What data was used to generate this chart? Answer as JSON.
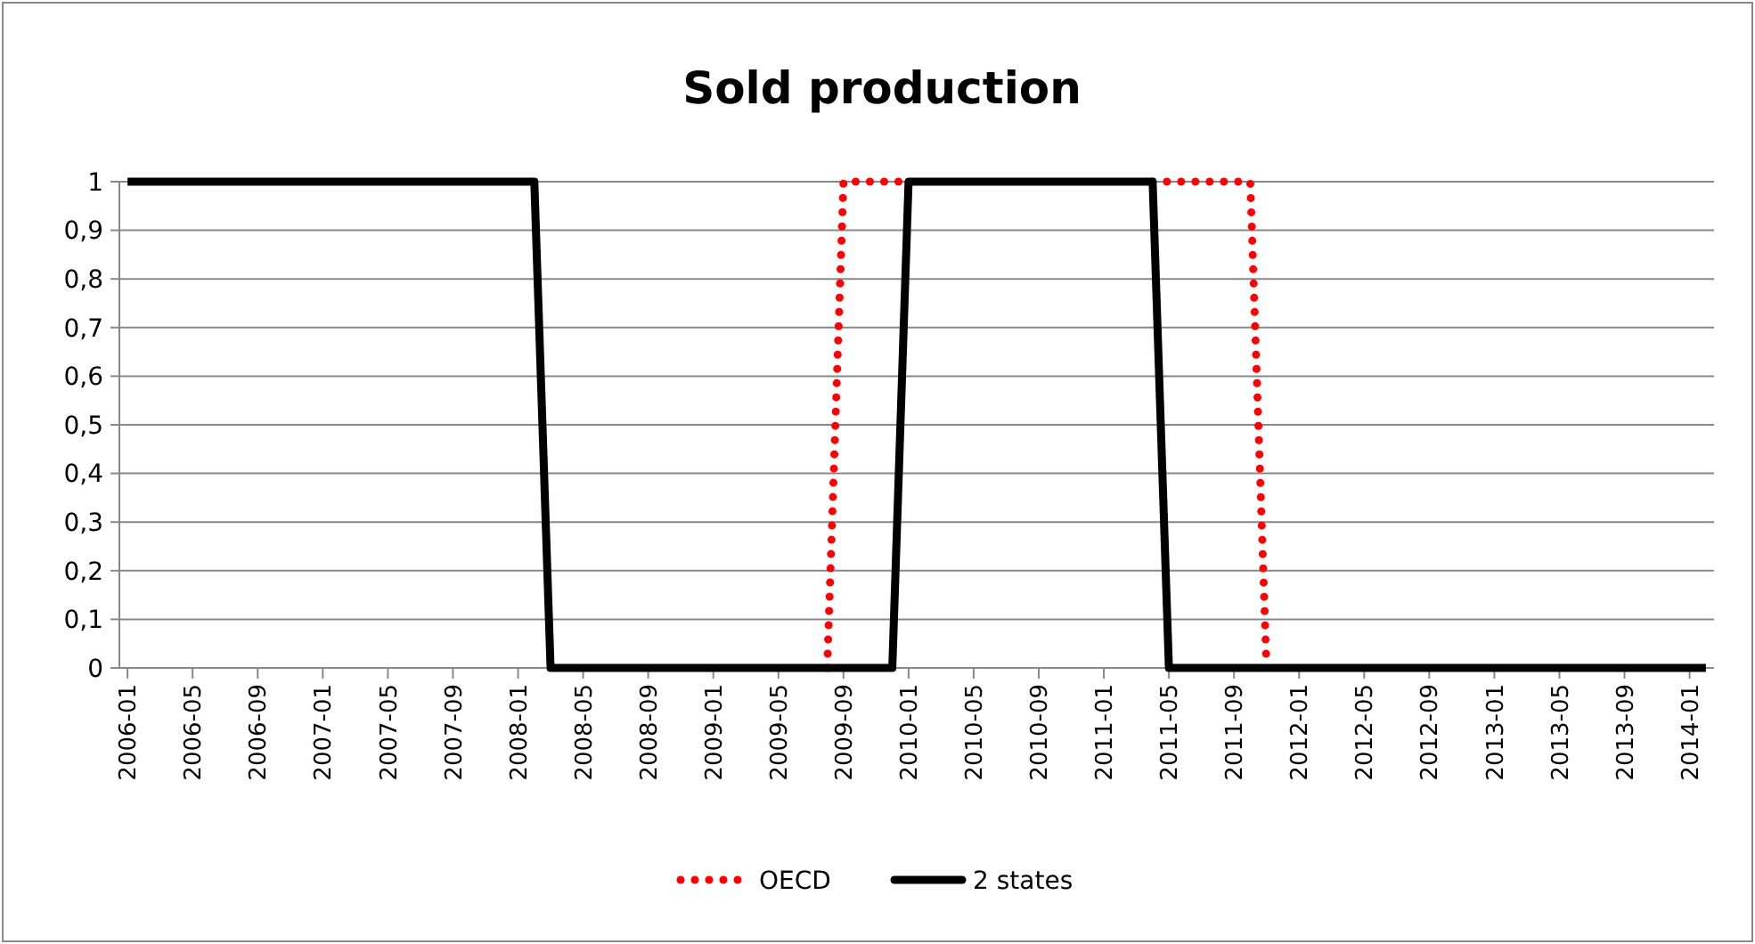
{
  "chart_data": {
    "type": "line",
    "title": "Sold production",
    "categories": [
      "2006-01",
      null,
      null,
      null,
      "2006-05",
      null,
      null,
      null,
      "2006-09",
      null,
      null,
      null,
      "2007-01",
      null,
      null,
      null,
      "2007-05",
      null,
      null,
      null,
      "2007-09",
      null,
      null,
      null,
      "2008-01",
      null,
      null,
      null,
      "2008-05",
      null,
      null,
      null,
      "2008-09",
      null,
      null,
      null,
      "2009-01",
      null,
      null,
      null,
      "2009-05",
      null,
      null,
      null,
      "2009-09",
      null,
      null,
      null,
      "2010-01",
      null,
      null,
      null,
      "2010-05",
      null,
      null,
      null,
      "2010-09",
      null,
      null,
      null,
      "2011-01",
      null,
      null,
      null,
      "2011-05",
      null,
      null,
      null,
      "2011-09",
      null,
      null,
      null,
      "2012-01",
      null,
      null,
      null,
      "2012-05",
      null,
      null,
      null,
      "2012-09",
      null,
      null,
      null,
      "2013-01",
      null,
      null,
      null,
      "2013-05",
      null,
      null,
      null,
      "2013-09",
      null,
      null,
      null,
      "2014-01",
      null
    ],
    "series": [
      {
        "name": "OECD",
        "color": "#ff0000",
        "line_style": "dotted",
        "values": [
          null,
          null,
          null,
          null,
          null,
          null,
          null,
          null,
          null,
          null,
          null,
          null,
          null,
          null,
          null,
          null,
          null,
          null,
          null,
          null,
          null,
          null,
          null,
          null,
          null,
          null,
          null,
          null,
          null,
          null,
          null,
          null,
          null,
          null,
          null,
          null,
          null,
          null,
          null,
          null,
          null,
          null,
          null,
          0,
          1,
          1,
          1,
          1,
          1,
          null,
          null,
          null,
          null,
          null,
          null,
          null,
          null,
          null,
          null,
          null,
          null,
          null,
          null,
          1,
          1,
          1,
          1,
          1,
          1,
          1,
          0,
          null,
          null,
          null,
          null,
          null,
          null,
          null,
          null,
          null,
          null,
          null,
          null,
          null,
          null,
          null,
          null,
          null,
          null,
          null,
          null,
          null,
          null,
          null,
          null,
          null,
          null,
          null
        ]
      },
      {
        "name": "2 states",
        "color": "#000000",
        "line_style": "solid",
        "values": [
          1,
          1,
          1,
          1,
          1,
          1,
          1,
          1,
          1,
          1,
          1,
          1,
          1,
          1,
          1,
          1,
          1,
          1,
          1,
          1,
          1,
          1,
          1,
          1,
          1,
          1,
          0,
          0,
          0,
          0,
          0,
          0,
          0,
          0,
          0,
          0,
          0,
          0,
          0,
          0,
          0,
          0,
          0,
          0,
          0,
          0,
          0,
          0,
          1,
          1,
          1,
          1,
          1,
          1,
          1,
          1,
          1,
          1,
          1,
          1,
          1,
          1,
          1,
          1,
          0,
          0,
          0,
          0,
          0,
          0,
          0,
          0,
          0,
          0,
          0,
          0,
          0,
          0,
          0,
          0,
          0,
          0,
          0,
          0,
          0,
          0,
          0,
          0,
          0,
          0,
          0,
          0,
          0,
          0,
          0,
          0,
          0,
          0
        ]
      }
    ],
    "ylim": [
      0,
      1
    ],
    "yticks": [
      0,
      {
        "value": 0.1,
        "label": "0,1"
      },
      {
        "value": 0.2,
        "label": "0,2"
      },
      {
        "value": 0.3,
        "label": "0,3"
      },
      {
        "value": 0.4,
        "label": "0,4"
      },
      {
        "value": 0.5,
        "label": "0,5"
      },
      {
        "value": 0.6,
        "label": "0,6"
      },
      {
        "value": 0.7,
        "label": "0,7"
      },
      {
        "value": 0.8,
        "label": "0,8"
      },
      {
        "value": 0.9,
        "label": "0,9"
      },
      1
    ],
    "grid": "y",
    "legend": "bottom"
  }
}
